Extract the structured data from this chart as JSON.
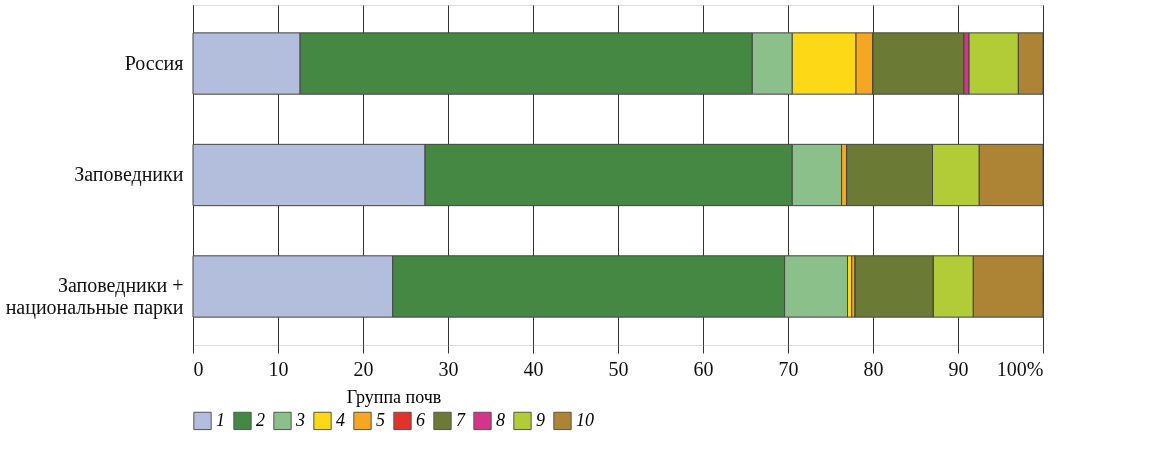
{
  "chart_data": {
    "type": "bar",
    "orientation": "horizontal",
    "stacked": true,
    "categories": [
      "Россия",
      "Заповедники",
      "Заповедники +\nнациональные парки"
    ],
    "legend_title": "Группа почв",
    "legend": "bottom",
    "grid": "x",
    "xlim": [
      0,
      100
    ],
    "xticks": [
      0,
      10,
      20,
      30,
      40,
      50,
      60,
      70,
      80,
      90,
      {
        "value": 100,
        "label": "100%"
      }
    ],
    "series": [
      {
        "name": "1",
        "color": "#b3bedd",
        "values": [
          12.6,
          27.3,
          23.5
        ]
      },
      {
        "name": "2",
        "color": "#458843",
        "values": [
          53.2,
          43.2,
          46.1
        ]
      },
      {
        "name": "3",
        "color": "#8bc08a",
        "values": [
          4.7,
          5.8,
          7.4
        ]
      },
      {
        "name": "4",
        "color": "#fcd817",
        "values": [
          7.5,
          0,
          0.5
        ]
      },
      {
        "name": "5",
        "color": "#f5a623",
        "values": [
          2.0,
          0.6,
          0.4
        ]
      },
      {
        "name": "6",
        "color": "#e2332b",
        "values": [
          0,
          0,
          0
        ]
      },
      {
        "name": "7",
        "color": "#6b7b35",
        "values": [
          10.7,
          10.1,
          9.2
        ]
      },
      {
        "name": "8",
        "color": "#d6338a",
        "values": [
          0.6,
          0,
          0
        ]
      },
      {
        "name": "9",
        "color": "#b2cc37",
        "values": [
          5.8,
          5.5,
          4.7
        ]
      },
      {
        "name": "10",
        "color": "#ad8435",
        "values": [
          2.9,
          7.5,
          8.2
        ]
      }
    ]
  }
}
